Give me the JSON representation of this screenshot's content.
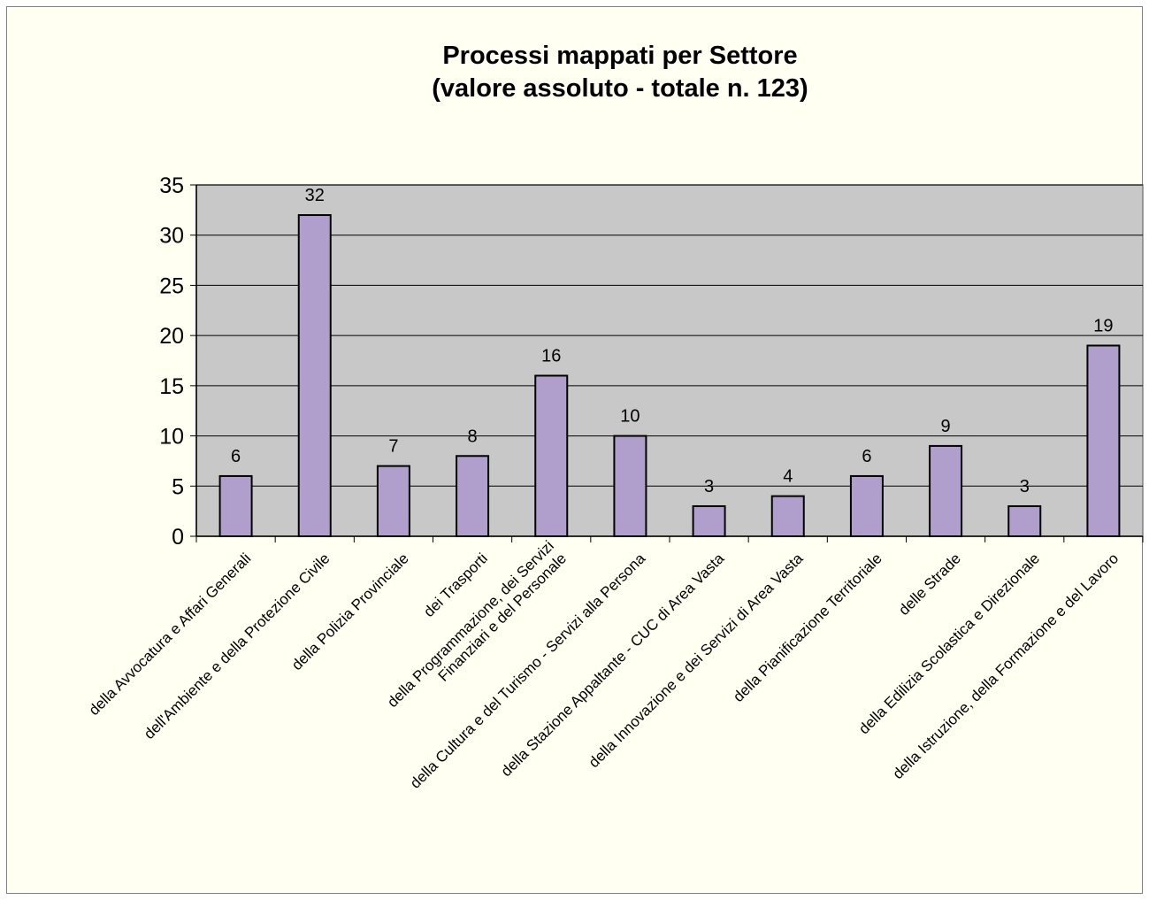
{
  "chart_data": {
    "type": "bar",
    "title": [
      "Processi mappati per Settore",
      "(valore assoluto - totale n. 123)"
    ],
    "categories": [
      [
        "della Avvocatura e Affari Generali"
      ],
      [
        "dell'Ambiente e della Protezione Civile"
      ],
      [
        "della Polizia Provinciale"
      ],
      [
        "dei Trasporti"
      ],
      [
        "della Programmazione, dei Servizi",
        "Finanziari e del Personale"
      ],
      [
        "della Cultura e del Turismo - Servizi alla Persona"
      ],
      [
        "della Stazione Appaltante - CUC di Area Vasta"
      ],
      [
        "della Innovazione e dei Servizi di Area Vasta"
      ],
      [
        "della Pianificazione Territoriale"
      ],
      [
        "delle Strade"
      ],
      [
        "della Edilizia Scolastica e Direzionale"
      ],
      [
        "della Istruzione, della Formazione e del Lavoro"
      ]
    ],
    "values": [
      6,
      32,
      7,
      8,
      16,
      10,
      3,
      4,
      6,
      9,
      3,
      19
    ],
    "ylim": [
      0,
      35
    ],
    "yticks": [
      0,
      5,
      10,
      15,
      20,
      25,
      30,
      35
    ],
    "grid": true,
    "legend": "none",
    "colors": {
      "bar": "#b09fcc",
      "plot_background": "#c8c8c8",
      "chart_background": "#fffff2",
      "grid": "#000000"
    }
  }
}
